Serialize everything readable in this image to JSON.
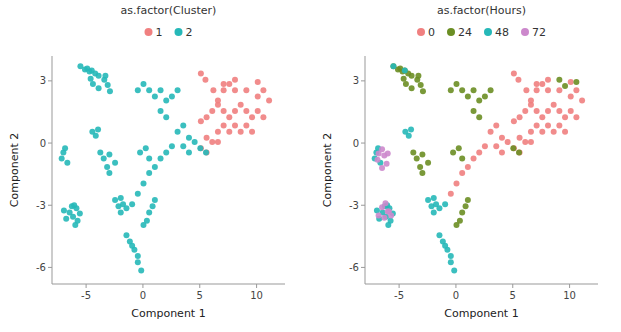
{
  "chart_data": [
    {
      "type": "scatter",
      "title": "as.factor(Cluster)",
      "x_label": "Component 1",
      "y_label": "Component 2",
      "xlim": [
        -8.0,
        12.5
      ],
      "ylim": [
        -6.8,
        4.2
      ],
      "xticks": [
        -5,
        0,
        5,
        10
      ],
      "yticks": [
        -6,
        -3,
        0,
        3
      ],
      "grid": false,
      "legend": "top",
      "series": [
        {
          "name": "1",
          "color": "#F08080",
          "x": [
            5.1,
            5.5,
            6.2,
            7.1,
            8.1,
            9.1,
            10.1,
            10.6,
            11.1,
            6.1,
            6.6,
            7.1,
            7.6,
            8.1,
            8.6,
            9.1,
            9.6,
            10.1,
            10.6,
            6.6,
            7.1,
            7.6,
            8.1,
            8.6,
            9.1,
            9.6,
            5.6,
            6.1,
            6.6,
            5.1,
            5.6,
            7.1,
            8.1,
            10.1,
            5.1,
            5.6,
            6.6,
            7.6
          ],
          "values": [
            3.35,
            3.05,
            2.55,
            2.85,
            2.55,
            2.55,
            2.25,
            2.55,
            2.05,
            1.55,
            1.85,
            1.55,
            1.25,
            1.55,
            1.85,
            1.55,
            1.25,
            1.55,
            1.25,
            0.55,
            0.85,
            0.55,
            0.85,
            0.55,
            0.85,
            0.55,
            0.25,
            0.05,
            0.05,
            -0.25,
            -0.45,
            2.55,
            3.05,
            2.95,
            1.05,
            1.25,
            2.05,
            2.85
          ]
        },
        {
          "name": "2",
          "color": "#26B8B8",
          "x": [
            -5.5,
            -5.1,
            -4.9,
            -4.7,
            -4.5,
            -4.2,
            -4.6,
            -3.9,
            -3.4,
            -3.1,
            -4.4,
            -3.9,
            -3.3,
            -2.9,
            -7.0,
            -7.15,
            -6.85,
            -6.65,
            -6.45,
            -6.25,
            -6.75,
            -6.95,
            -6.15,
            -5.85,
            -6.05,
            -5.55,
            -5.95,
            -5.75,
            -4.45,
            -4.15,
            -3.95,
            -3.75,
            -3.45,
            -2.95,
            -2.95,
            -3.15,
            -2.45,
            -1.95,
            -2.15,
            -1.75,
            -2.45,
            -1.95,
            -1.45,
            -0.95,
            -1.45,
            -1.15,
            -0.75,
            -0.45,
            -0.15,
            -0.95,
            -0.45,
            0.05,
            0.35,
            0.55,
            0.85,
            1.05,
            -0.45,
            0.05,
            0.55,
            1.05,
            1.55,
            2.05,
            2.55,
            -0.45,
            0.05,
            0.55,
            1.05,
            1.55,
            2.05,
            2.55,
            3.05,
            3.55,
            4.05,
            3.05,
            3.55,
            4.05,
            4.55,
            5.05,
            5.55,
            -0.25,
            0.25,
            0.55,
            1.55,
            2.05
          ],
          "values": [
            3.7,
            3.55,
            3.6,
            3.45,
            3.5,
            3.35,
            3.1,
            3.25,
            3.05,
            2.8,
            2.85,
            2.65,
            3.25,
            2.5,
            -0.45,
            -0.75,
            -0.25,
            -0.95,
            -3.35,
            -3.05,
            -3.65,
            -3.25,
            -3.55,
            -3.15,
            -3.0,
            -3.4,
            -3.95,
            -3.75,
            0.55,
            0.35,
            0.65,
            -0.45,
            -0.75,
            -0.55,
            -1.45,
            -1.15,
            -0.95,
            -3.35,
            -3.05,
            -2.95,
            -2.75,
            -2.65,
            -3.15,
            -2.95,
            -4.45,
            -4.75,
            -5.15,
            -5.75,
            -6.15,
            -4.95,
            -5.45,
            -3.95,
            -3.75,
            -3.35,
            -3.05,
            -2.75,
            -2.45,
            -1.95,
            -1.45,
            -1.15,
            -0.75,
            -0.45,
            -0.15,
            2.55,
            2.85,
            2.55,
            2.25,
            2.55,
            2.05,
            2.25,
            2.55,
            -0.15,
            -0.45,
            0.55,
            0.85,
            0.25,
            0.05,
            -0.25,
            -0.45,
            -0.45,
            -0.25,
            -0.75,
            1.55,
            1.25
          ]
        }
      ]
    },
    {
      "type": "scatter",
      "title": "as.factor(Hours)",
      "x_label": "Component 1",
      "y_label": "Component 2",
      "xlim": [
        -8.0,
        12.5
      ],
      "ylim": [
        -6.8,
        4.2
      ],
      "xticks": [
        -5,
        0,
        5,
        10
      ],
      "yticks": [
        -6,
        -3,
        0,
        3
      ],
      "grid": false,
      "legend": "top",
      "series": [
        {
          "name": "0",
          "color": "#F08080",
          "x": [
            5.1,
            5.5,
            6.2,
            7.1,
            8.1,
            9.1,
            10.1,
            10.6,
            11.1,
            6.1,
            6.6,
            7.1,
            7.6,
            8.1,
            8.6,
            9.1,
            9.6,
            10.1,
            10.6,
            6.6,
            7.1,
            7.6,
            8.1,
            8.6,
            9.1,
            9.6,
            5.6,
            6.1,
            6.6,
            5.1,
            5.6,
            7.1,
            8.1,
            10.1,
            5.1,
            5.6,
            6.6,
            7.6,
            -0.45,
            0.05,
            0.55,
            1.05,
            1.55,
            2.05,
            2.55,
            3.55,
            4.05,
            3.05,
            3.55,
            4.05,
            4.55
          ],
          "values": [
            3.35,
            3.05,
            2.55,
            2.85,
            2.55,
            2.55,
            2.25,
            2.55,
            2.05,
            1.55,
            1.85,
            1.55,
            1.25,
            1.55,
            1.85,
            1.55,
            1.25,
            1.55,
            1.25,
            0.55,
            0.85,
            0.55,
            0.85,
            0.55,
            0.85,
            0.55,
            0.25,
            0.05,
            0.05,
            -0.25,
            -0.45,
            2.55,
            3.05,
            2.95,
            1.05,
            1.25,
            2.05,
            2.85,
            -2.45,
            -1.95,
            -1.45,
            -1.15,
            -0.75,
            -0.45,
            -0.15,
            -0.15,
            -0.45,
            0.55,
            0.85,
            0.25,
            0.05
          ]
        },
        {
          "name": "24",
          "color": "#6B8E23",
          "x": [
            -5.5,
            -5.1,
            -4.9,
            -4.7,
            -4.5,
            -4.2,
            -4.6,
            -3.9,
            -3.4,
            -3.1,
            -4.4,
            -3.9,
            -3.3,
            -2.9,
            -3.75,
            -3.45,
            -2.95,
            -2.95,
            -3.15,
            -2.45,
            0.05,
            0.35,
            0.55,
            0.85,
            1.05,
            -0.45,
            0.05,
            0.55,
            1.05,
            1.55,
            2.05,
            2.55,
            3.05,
            -0.25,
            0.25,
            0.55,
            1.55,
            2.05,
            9.6,
            9.1,
            10.6,
            5.05,
            5.55
          ],
          "values": [
            3.7,
            3.55,
            3.6,
            3.45,
            3.5,
            3.35,
            3.1,
            3.25,
            3.05,
            2.8,
            2.85,
            2.65,
            3.25,
            2.5,
            -0.45,
            -0.75,
            -0.55,
            -1.45,
            -1.15,
            -0.95,
            -3.95,
            -3.75,
            -3.35,
            -3.05,
            -2.75,
            2.55,
            2.85,
            2.55,
            2.25,
            2.55,
            2.05,
            2.25,
            2.55,
            -0.45,
            -0.25,
            -0.75,
            1.55,
            1.25,
            2.75,
            3.05,
            2.95,
            -0.25,
            -0.45
          ]
        },
        {
          "name": "48",
          "color": "#26B8B8",
          "x": [
            -6.45,
            -6.25,
            -6.75,
            -6.95,
            -6.15,
            -5.85,
            -6.05,
            -5.55,
            -5.95,
            -5.75,
            -7.0,
            -7.15,
            -6.85,
            -6.65,
            -4.45,
            -4.15,
            -3.95,
            -1.95,
            -2.15,
            -1.75,
            -2.45,
            -1.95,
            -1.45,
            -0.95,
            -1.45,
            -1.15,
            -0.75,
            -0.45,
            -0.15,
            -0.95,
            -0.45,
            -5.5,
            -4.5
          ],
          "values": [
            -3.35,
            -3.05,
            -3.65,
            -3.25,
            -3.55,
            -3.15,
            -3.0,
            -3.4,
            -3.95,
            -3.75,
            -0.45,
            -0.75,
            -0.25,
            -0.95,
            0.55,
            0.35,
            0.65,
            -3.35,
            -3.05,
            -2.95,
            -2.75,
            -2.65,
            -3.15,
            -2.95,
            -4.45,
            -4.75,
            -5.15,
            -5.75,
            -6.15,
            -4.95,
            -5.45,
            3.7,
            3.5
          ]
        },
        {
          "name": "72",
          "color": "#CC88CC",
          "x": [
            -6.8,
            -6.9,
            -6.5,
            -6.3,
            -6.0,
            -6.5,
            -6.1,
            -6.5,
            -6.2,
            -6.0,
            -6.8,
            -6.3,
            -5.9,
            -5.7
          ],
          "values": [
            -0.5,
            -0.8,
            -0.3,
            -0.6,
            -0.5,
            -1.2,
            -1.0,
            -3.1,
            -2.9,
            -3.3,
            -3.5,
            -3.6,
            -3.3,
            -3.5
          ]
        }
      ]
    }
  ]
}
